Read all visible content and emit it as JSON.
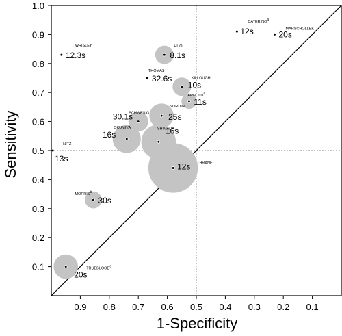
{
  "chart_data": {
    "type": "scatter",
    "xlabel": "1-Specificity",
    "ylabel": "Sensitivity",
    "x_reversed": true,
    "xlim": [
      1.0,
      0.0
    ],
    "ylim": [
      0.0,
      1.0
    ],
    "x_ticks": [
      "0.9",
      "0.8",
      "0.7",
      "0.6",
      "0.5",
      "0.4",
      "0.3",
      "0.2",
      "0.1"
    ],
    "y_ticks": [
      "0.1",
      "0.2",
      "0.3",
      "0.4",
      "0.5",
      "0.6",
      "0.7",
      "0.8",
      "0.9",
      "1.0"
    ],
    "reference_lines": {
      "x": 0.5,
      "y": 0.5,
      "style": "dotted"
    },
    "diagonal": true,
    "bubble_color": "#c4c4c4",
    "studies": [
      {
        "name": "CATERINO",
        "sup": "a",
        "time": "12s",
        "x": 0.36,
        "y": 0.91,
        "size": 0
      },
      {
        "name": "MARSCHOLLEK",
        "sup": "",
        "time": "20s",
        "x": 0.23,
        "y": 0.9,
        "size": 0
      },
      {
        "name": "WRISLEY",
        "sup": "",
        "time": "12.3s",
        "x": 0.965,
        "y": 0.83,
        "size": 0
      },
      {
        "name": "HUO",
        "sup": "",
        "time": "8.1s",
        "x": 0.61,
        "y": 0.83,
        "size": 1
      },
      {
        "name": "THOMAS",
        "sup": "",
        "time": "32.6s",
        "x": 0.67,
        "y": 0.75,
        "size": 0
      },
      {
        "name": "KILLOUGH",
        "sup": "",
        "time": "10s",
        "x": 0.55,
        "y": 0.72,
        "size": 1
      },
      {
        "name": "ARNOLD",
        "sup": "a",
        "time": "11s",
        "x": 0.525,
        "y": 0.67,
        "size": 0.6
      },
      {
        "name": "NORDIN",
        "sup": "",
        "time": "25s",
        "x": 0.62,
        "y": 0.62,
        "size": 2
      },
      {
        "name": "SCHWESIG",
        "sup": "",
        "time": "30.1s",
        "x": 0.7,
        "y": 0.6,
        "size": 1.2
      },
      {
        "name": "OKUMIYA",
        "sup": "",
        "time": "16s",
        "x": 0.74,
        "y": 0.54,
        "size": 2.8
      },
      {
        "name": "SHIMADA",
        "sup": "",
        "time": "16s",
        "x": 0.63,
        "y": 0.53,
        "size": 4.5
      },
      {
        "name": "NITZ",
        "sup": "",
        "time": "13s",
        "x": 0.995,
        "y": 0.5,
        "size": 0
      },
      {
        "name": "THRANE",
        "sup": "",
        "time": "12s",
        "x": 0.58,
        "y": 0.44,
        "size": 10
      },
      {
        "name": "MORRIS",
        "sup": "b",
        "time": "30s",
        "x": 0.855,
        "y": 0.33,
        "size": 0.8
      },
      {
        "name": "TRUEBLOOD",
        "sup": "c",
        "time": "20s",
        "x": 0.95,
        "y": 0.1,
        "size": 2
      }
    ]
  }
}
